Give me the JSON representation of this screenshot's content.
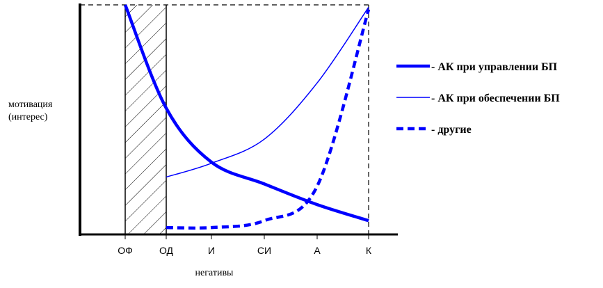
{
  "chart_data": {
    "type": "line",
    "y_label": [
      "мотивация",
      "(интерес)"
    ],
    "x_label": "негативы",
    "categories": [
      "ОФ",
      "ОД",
      "И",
      "СИ",
      "А",
      "К"
    ],
    "ylim": [
      0,
      100
    ],
    "series": [
      {
        "name": "- АК при управлении БП",
        "color": "#0000ff",
        "style": "thick",
        "values": [
          100,
          55,
          31.5,
          22,
          13,
          6
        ]
      },
      {
        "name": "- АК при обеспечении БП",
        "color": "#0000ff",
        "style": "thin",
        "values": [
          null,
          25,
          31,
          41.5,
          66,
          99
        ]
      },
      {
        "name": "- другие",
        "color": "#0000ff",
        "style": "dashed",
        "values": [
          null,
          3,
          3,
          6,
          21,
          98
        ]
      }
    ]
  }
}
